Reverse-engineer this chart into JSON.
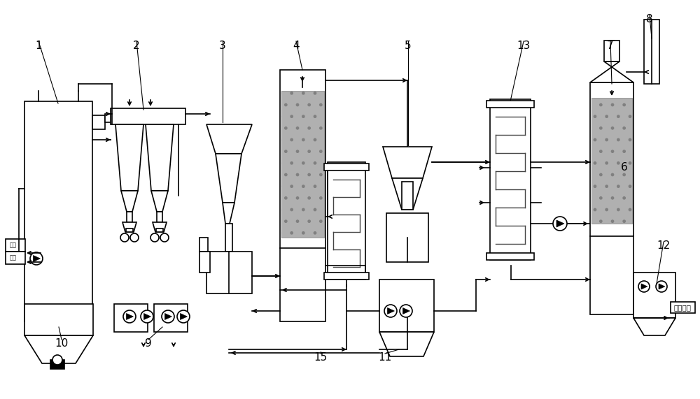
{
  "bg_color": "#ffffff",
  "lc": "#000000",
  "lw": 1.2,
  "fill_gray": "#b0b0b0",
  "label_hcl": "盐酸废液",
  "label_fuel": "燃气",
  "label_air": "空气"
}
